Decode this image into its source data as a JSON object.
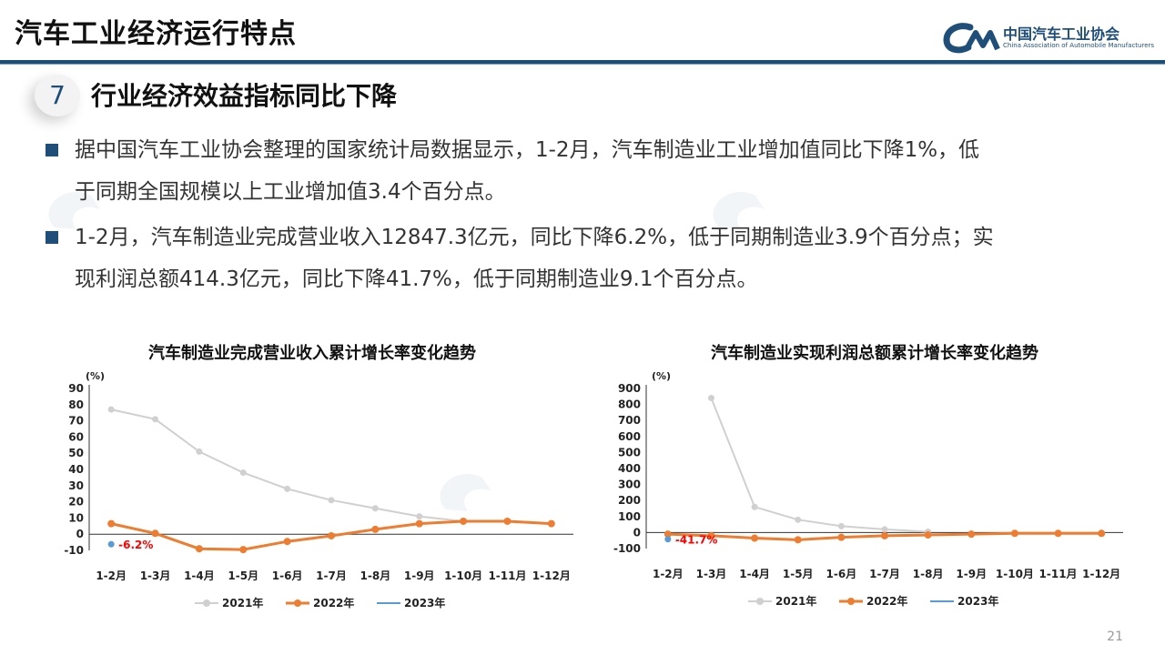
{
  "header": {
    "title": "汽车工业经济运行特点",
    "logo_cn": "中国汽车工业协会",
    "logo_en": "China Association of Automobile Manufacturers"
  },
  "section": {
    "number": "7",
    "title": "行业经济效益指标同比下降"
  },
  "bullets": [
    {
      "line1": "据中国汽车工业协会整理的国家统计局数据显示，1-2月，汽车制造业工业增加值同比下降1%，低",
      "line2": "于同期全国规模以上工业增加值3.4个百分点。"
    },
    {
      "line1": "1-2月，汽车制造业完成营业收入12847.3亿元，同比下降6.2%，低于同期制造业3.9个百分点；实",
      "line2": "现利润总额414.3亿元，同比下降41.7%，低于同期制造业9.1个百分点。"
    }
  ],
  "colors": {
    "y2021": "#d0d0d0",
    "y2022": "#ed7d31",
    "y2023": "#5b9bd5",
    "accent": "#1f4e79",
    "label_red": "#ff0000"
  },
  "page_number": "21",
  "chart_data": [
    {
      "type": "line",
      "title": "汽车制造业完成营业收入累计增长率变化趋势",
      "ylabel": "(%)",
      "ylim": [
        -10,
        90
      ],
      "yticks": [
        90,
        80,
        70,
        60,
        50,
        40,
        30,
        20,
        10,
        0,
        -10
      ],
      "categories": [
        "1-2月",
        "1-3月",
        "1-4月",
        "1-5月",
        "1-6月",
        "1-7月",
        "1-8月",
        "1-9月",
        "1-10月",
        "1-11月",
        "1-12月"
      ],
      "series": [
        {
          "name": "2021年",
          "values": [
            77,
            71,
            51,
            38,
            28,
            21,
            16,
            11,
            8,
            null,
            null
          ]
        },
        {
          "name": "2022年",
          "values": [
            6.5,
            0.5,
            -9,
            -9.5,
            -4.5,
            -1,
            3,
            6.5,
            8,
            8,
            6.5
          ]
        },
        {
          "name": "2023年",
          "values": [
            -6.2,
            null,
            null,
            null,
            null,
            null,
            null,
            null,
            null,
            null,
            null
          ]
        }
      ],
      "annotation": "-6.2%"
    },
    {
      "type": "line",
      "title": "汽车制造业实现利润总额累计增长率变化趋势",
      "ylabel": "(%)",
      "ylim": [
        -100,
        900
      ],
      "yticks": [
        900,
        800,
        700,
        600,
        500,
        400,
        300,
        200,
        100,
        0,
        -100
      ],
      "categories": [
        "1-2月",
        "1-3月",
        "1-4月",
        "1-5月",
        "1-6月",
        "1-7月",
        "1-8月",
        "1-9月",
        "1-10月",
        "1-11月",
        "1-12月"
      ],
      "series": [
        {
          "name": "2021年",
          "values": [
            null,
            840,
            160,
            80,
            40,
            20,
            5,
            null,
            null,
            null,
            null
          ]
        },
        {
          "name": "2022年",
          "values": [
            -10,
            -20,
            -35,
            -45,
            -30,
            -20,
            -15,
            -10,
            -5,
            -5,
            -5
          ]
        },
        {
          "name": "2023年",
          "values": [
            -41.7,
            null,
            null,
            null,
            null,
            null,
            null,
            null,
            null,
            null,
            null
          ]
        }
      ],
      "annotation": "-41.7%"
    }
  ]
}
